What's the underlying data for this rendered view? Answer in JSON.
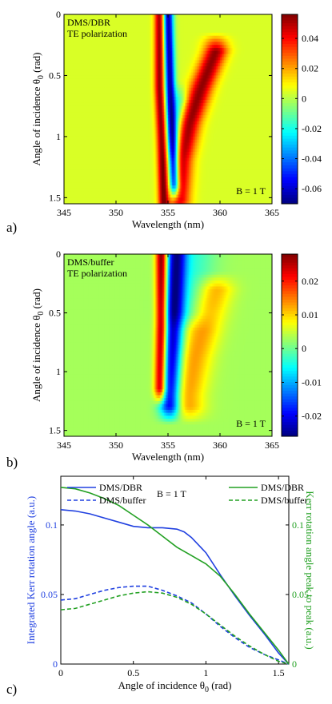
{
  "chart_data": [
    {
      "type": "heatmap",
      "panel_label": "a)",
      "annotation_lines": [
        "DMS/DBR",
        "TE polarization"
      ],
      "field_label": "B = 1 T",
      "xlabel": "Wavelength (nm)",
      "ylabel_text": "Angle of incidence θ",
      "ylabel_sub": "0",
      "ylabel_unit": " (rad)",
      "xlim": [
        345,
        365
      ],
      "ylim": [
        0,
        1.55
      ],
      "y_reversed": true,
      "xticks": [
        345,
        350,
        355,
        360,
        365
      ],
      "yticks": [
        0,
        0.5,
        1,
        1.5
      ],
      "ytick_labels": [
        "0",
        "0.5",
        "1",
        "1.5"
      ],
      "colorbar": {
        "vmin": -0.07,
        "vmax": 0.056,
        "ticks": [
          0.04,
          0.02,
          0,
          -0.02,
          -0.04,
          -0.06
        ],
        "tick_labels": [
          "0.04",
          "0.02",
          "0",
          "-0.02",
          "-0.04",
          "-0.06"
        ]
      },
      "background_value": 0.004,
      "features": [
        {
          "kind": "band",
          "amp": 0.05,
          "theta_points": [
            [
              0,
              354.2
            ],
            [
              0.6,
              354.2
            ],
            [
              1.0,
              354.4
            ],
            [
              1.55,
              354.6
            ]
          ],
          "width_nm": 0.35,
          "theta_range": [
            0,
            1.55
          ]
        },
        {
          "kind": "band",
          "amp": -0.07,
          "theta_points": [
            [
              0,
              355.0
            ],
            [
              0.6,
              355.2
            ],
            [
              1.0,
              355.4
            ],
            [
              1.55,
              355.7
            ]
          ],
          "width_nm": 0.35,
          "theta_range": [
            0,
            1.4
          ]
        },
        {
          "kind": "band",
          "amp": 0.05,
          "theta_points": [
            [
              0.3,
              359.6
            ],
            [
              0.6,
              358.2
            ],
            [
              0.9,
              357.0
            ],
            [
              1.2,
              356.2
            ],
            [
              1.5,
              355.9
            ]
          ],
          "width_nm": 0.8,
          "theta_range": [
            0.3,
            1.52
          ]
        },
        {
          "kind": "band",
          "amp": -0.02,
          "theta_points": [
            [
              0.7,
              356.2
            ],
            [
              1.5,
              355.3
            ]
          ],
          "width_nm": 0.5,
          "theta_range": [
            0.7,
            1.5
          ]
        }
      ]
    },
    {
      "type": "heatmap",
      "panel_label": "b)",
      "annotation_lines": [
        "DMS/buffer",
        "TE polarization"
      ],
      "field_label": "B = 1 T",
      "xlabel": "Wavelength (nm)",
      "ylabel_text": "Angle of incidence θ",
      "ylabel_sub": "0",
      "ylabel_unit": " (rad)",
      "xlim": [
        345,
        365
      ],
      "ylim": [
        0,
        1.55
      ],
      "y_reversed": true,
      "xticks": [
        345,
        350,
        355,
        360,
        365
      ],
      "yticks": [
        0,
        0.5,
        1,
        1.5
      ],
      "ytick_labels": [
        "0",
        "0.5",
        "1",
        "1.5"
      ],
      "colorbar": {
        "vmin": -0.026,
        "vmax": 0.028,
        "ticks": [
          0.02,
          0.01,
          0,
          -0.01,
          -0.02
        ],
        "tick_labels": [
          "0.02",
          "0.01",
          "0",
          "-0.01",
          "-0.02"
        ]
      },
      "background_value": 0.003,
      "features": [
        {
          "kind": "band",
          "amp": 0.028,
          "theta_points": [
            [
              0,
              354.4
            ],
            [
              0.6,
              354.4
            ],
            [
              1.0,
              354.3
            ],
            [
              1.55,
              354.2
            ]
          ],
          "width_nm": 0.4,
          "theta_range": [
            0,
            1.15
          ]
        },
        {
          "kind": "band",
          "amp": -0.026,
          "theta_points": [
            [
              0,
              355.8
            ],
            [
              0.4,
              355.6
            ],
            [
              0.8,
              355.4
            ],
            [
              1.2,
              355.2
            ]
          ],
          "width_nm": 0.7,
          "theta_range": [
            0,
            1.3
          ]
        },
        {
          "kind": "band",
          "amp": 0.01,
          "theta_points": [
            [
              0.3,
              359.5
            ],
            [
              0.6,
              358.5
            ],
            [
              0.9,
              357.5
            ],
            [
              1.2,
              356.8
            ]
          ],
          "width_nm": 1.2,
          "theta_range": [
            0.3,
            1.3
          ]
        },
        {
          "kind": "band",
          "amp": -0.006,
          "theta_points": [
            [
              0,
              357.5
            ],
            [
              0.4,
              357.0
            ]
          ],
          "width_nm": 1.5,
          "theta_range": [
            0,
            0.5
          ]
        }
      ]
    },
    {
      "type": "line",
      "panel_label": "c)",
      "xlabel_text": "Angle of incidence θ",
      "xlabel_sub": "0",
      "xlabel_unit": " (rad)",
      "ylabel_left": "Integrated Kerr rotation angle (a.u.)",
      "ylabel_right": "Kerr rotation angle peak to peak (a.u.)",
      "field_label": "B = 1 T",
      "xlim": [
        0,
        1.571
      ],
      "ylim_left": [
        0,
        0.135
      ],
      "ylim_right": [
        0,
        0.135
      ],
      "xticks": [
        0,
        0.5,
        1,
        1.5
      ],
      "xtick_labels": [
        "0",
        "0.5",
        "1",
        "1.5"
      ],
      "yticks_left": [
        0,
        0.05,
        0.1
      ],
      "ytick_labels_left": [
        "0",
        "0.05",
        "0.1"
      ],
      "yticks_right": [
        0,
        0.05,
        0.1
      ],
      "ytick_labels_right": [
        "0",
        "0.05",
        "0.1"
      ],
      "colors": {
        "left": "#2040e0",
        "right": "#22a022"
      },
      "series": [
        {
          "name": "DMS/DBR",
          "axis": "left",
          "style": "solid",
          "color": "#2040e0",
          "x": [
            0,
            0.1,
            0.2,
            0.3,
            0.4,
            0.5,
            0.6,
            0.7,
            0.8,
            0.85,
            0.9,
            1.0,
            1.1,
            1.2,
            1.3,
            1.4,
            1.5,
            1.57
          ],
          "y": [
            0.111,
            0.11,
            0.108,
            0.105,
            0.102,
            0.099,
            0.098,
            0.098,
            0.097,
            0.095,
            0.091,
            0.08,
            0.064,
            0.049,
            0.035,
            0.022,
            0.008,
            0.0
          ]
        },
        {
          "name": "DMS/buffer",
          "axis": "left",
          "style": "dashed",
          "color": "#2040e0",
          "x": [
            0,
            0.1,
            0.2,
            0.3,
            0.4,
            0.5,
            0.6,
            0.7,
            0.8,
            0.9,
            1.0,
            1.1,
            1.2,
            1.3,
            1.4,
            1.5,
            1.57
          ],
          "y": [
            0.046,
            0.047,
            0.05,
            0.053,
            0.055,
            0.056,
            0.056,
            0.053,
            0.049,
            0.044,
            0.036,
            0.027,
            0.019,
            0.012,
            0.007,
            0.003,
            0.0
          ]
        },
        {
          "name": "DMS/DBR",
          "axis": "right",
          "style": "solid",
          "color": "#22a022",
          "x": [
            0,
            0.1,
            0.2,
            0.3,
            0.4,
            0.5,
            0.6,
            0.7,
            0.8,
            0.9,
            1.0,
            1.1,
            1.2,
            1.3,
            1.4,
            1.5,
            1.57
          ],
          "y": [
            0.127,
            0.126,
            0.123,
            0.119,
            0.114,
            0.107,
            0.1,
            0.092,
            0.084,
            0.078,
            0.072,
            0.063,
            0.05,
            0.036,
            0.023,
            0.01,
            0.0
          ]
        },
        {
          "name": "DMS/buffer",
          "axis": "right",
          "style": "dashed",
          "color": "#22a022",
          "x": [
            0,
            0.1,
            0.2,
            0.3,
            0.4,
            0.5,
            0.6,
            0.7,
            0.8,
            0.9,
            1.0,
            1.1,
            1.2,
            1.3,
            1.4,
            1.5,
            1.57
          ],
          "y": [
            0.039,
            0.04,
            0.043,
            0.046,
            0.049,
            0.051,
            0.052,
            0.051,
            0.048,
            0.043,
            0.036,
            0.028,
            0.02,
            0.013,
            0.007,
            0.002,
            0.0
          ]
        }
      ],
      "legend": {
        "left": [
          {
            "name": "DMS/DBR",
            "style": "solid"
          },
          {
            "name": "DMS/buffer",
            "style": "dashed"
          }
        ],
        "right": [
          {
            "name": "DMS/DBR",
            "style": "solid"
          },
          {
            "name": "DMS/buffer",
            "style": "dashed"
          }
        ]
      }
    }
  ]
}
